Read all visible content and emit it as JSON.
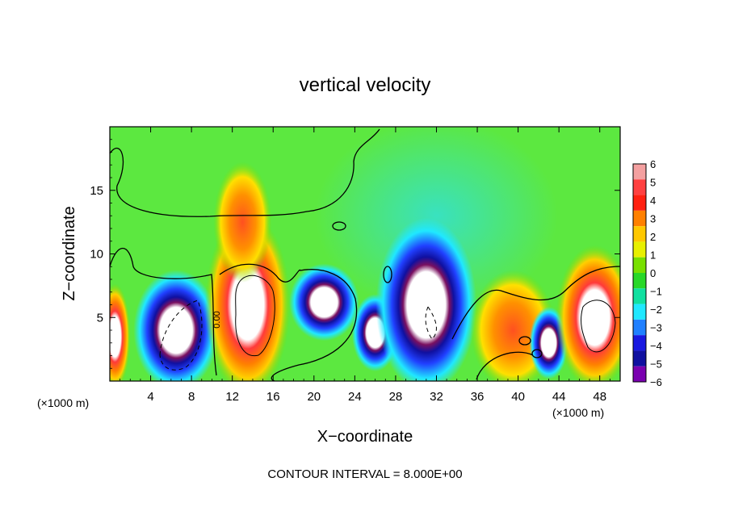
{
  "chart_data": {
    "type": "heatmap",
    "title": "vertical velocity",
    "xlabel": "X−coordinate",
    "ylabel": "Z−coordinate",
    "x_unit_left": "(×1000 m)",
    "x_unit_right": "(×1000 m)",
    "footer": "CONTOUR INTERVAL = 8.000E+00",
    "contour_label": "0.00",
    "xlim": [
      0,
      50
    ],
    "ylim": [
      0,
      20
    ],
    "x_ticks": [
      4,
      8,
      12,
      16,
      20,
      24,
      28,
      32,
      36,
      40,
      44,
      48
    ],
    "y_ticks": [
      5,
      10,
      15
    ],
    "colorbar": {
      "levels": [
        "6",
        "5",
        "4",
        "3",
        "2",
        "1",
        "0",
        "−1",
        "−2",
        "−3",
        "−4",
        "−5",
        "−6"
      ],
      "colors": [
        "#f4a0a0",
        "#ff4040",
        "#ff2010",
        "#ff8000",
        "#ffc800",
        "#e8f000",
        "#78e000",
        "#28d828",
        "#10e0a0",
        "#20e8ff",
        "#2080ff",
        "#1818e0",
        "#1010a0",
        "#7a00b0"
      ],
      "range": [
        -6,
        6
      ]
    },
    "regions": [
      {
        "feature": "updraft",
        "x": 0.5,
        "y": 3.5,
        "sx": 0.8,
        "sy": 2.2,
        "value": 6
      },
      {
        "feature": "downdraft",
        "x": 6.5,
        "y": 4.0,
        "sx": 2.2,
        "sy": 2.5,
        "value": -6
      },
      {
        "feature": "updraft",
        "x": 13.5,
        "y": 6.0,
        "sx": 2.2,
        "sy": 3.8,
        "value": 6
      },
      {
        "feature": "updraft",
        "x": 13.0,
        "y": 12.5,
        "sx": 1.5,
        "sy": 2.5,
        "value": 3
      },
      {
        "feature": "downdraft",
        "x": 21.0,
        "y": 6.2,
        "sx": 1.8,
        "sy": 1.6,
        "value": -6
      },
      {
        "feature": "downdraft",
        "x": 26.0,
        "y": 3.8,
        "sx": 1.2,
        "sy": 1.6,
        "value": -6
      },
      {
        "feature": "downdraft",
        "x": 31.0,
        "y": 6.0,
        "sx": 2.6,
        "sy": 3.6,
        "value": -6
      },
      {
        "feature": "updraft",
        "x": 39.5,
        "y": 4.0,
        "sx": 2.2,
        "sy": 2.5,
        "value": 4
      },
      {
        "feature": "downdraft",
        "x": 43.0,
        "y": 3.0,
        "sx": 1.0,
        "sy": 1.5,
        "value": -6
      },
      {
        "feature": "updraft",
        "x": 47.5,
        "y": 5.0,
        "sx": 2.0,
        "sy": 3.0,
        "value": 6
      }
    ]
  }
}
